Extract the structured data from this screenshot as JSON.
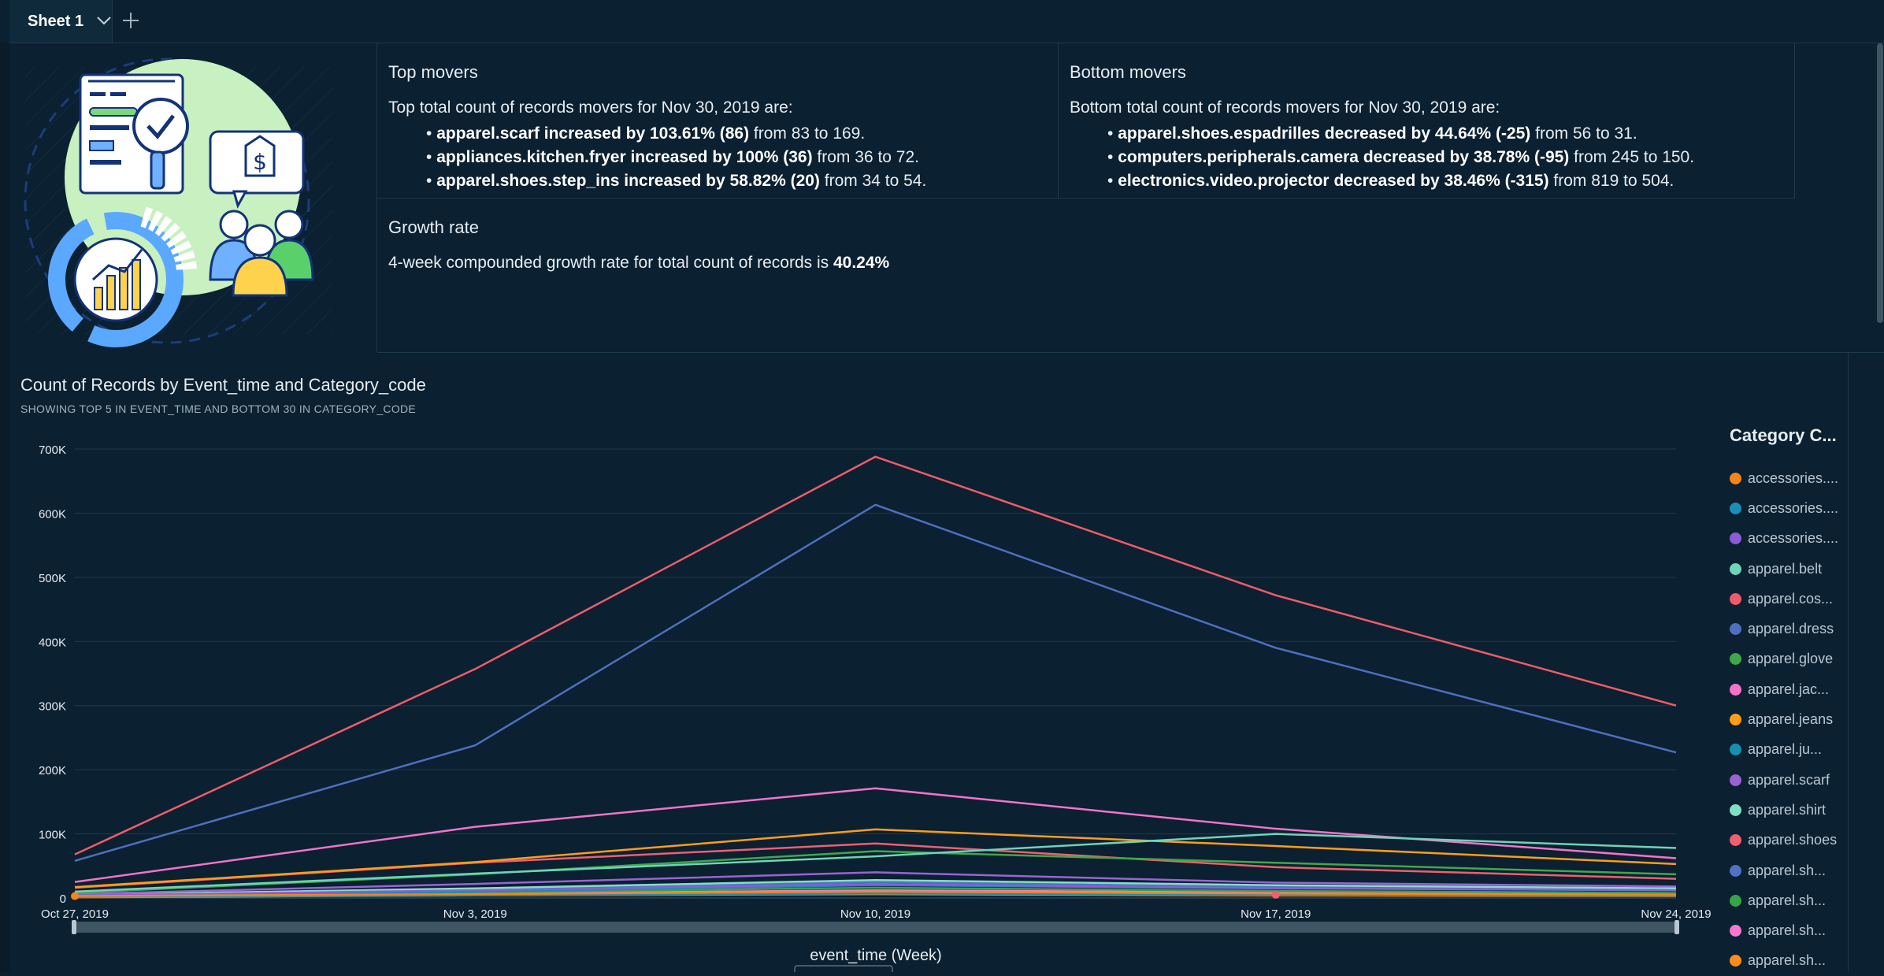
{
  "tabs": {
    "sheet_label": "Sheet 1"
  },
  "top_movers": {
    "title": "Top movers",
    "intro": "Top total count of records movers for Nov 30, 2019 are:",
    "items": [
      {
        "bold": "apparel.scarf increased by 103.61% (86)",
        "rest": " from 83 to 169."
      },
      {
        "bold": "appliances.kitchen.fryer increased by 100% (36)",
        "rest": " from 36 to 72."
      },
      {
        "bold": "apparel.shoes.step_ins increased by 58.82% (20)",
        "rest": " from 34 to 54."
      }
    ]
  },
  "bottom_movers": {
    "title": "Bottom movers",
    "intro": "Bottom total count of records movers for Nov 30, 2019 are:",
    "items": [
      {
        "bold": "apparel.shoes.espadrilles decreased by 44.64% (-25)",
        "rest": " from 56 to 31."
      },
      {
        "bold": "computers.peripherals.camera decreased by 38.78% (-95)",
        "rest": " from 245 to 150."
      },
      {
        "bold": "electronics.video.projector decreased by 38.46% (-315)",
        "rest": " from 819 to 504."
      }
    ]
  },
  "growth": {
    "title": "Growth rate",
    "text": "4-week compounded growth rate for total count of records is ",
    "value": "40.24%"
  },
  "chart_data": {
    "type": "line",
    "title": "Count of Records by Event_time and Category_code",
    "subtitle": "SHOWING TOP 5 IN EVENT_TIME AND BOTTOM 30 IN CATEGORY_CODE",
    "xlabel": "event_time (Week)",
    "ylabel": "",
    "x": [
      "Oct 27, 2019",
      "Nov 3, 2019",
      "Nov 10, 2019",
      "Nov 17, 2019",
      "Nov 24, 2019"
    ],
    "y_ticks": [
      "0",
      "100K",
      "200K",
      "300K",
      "400K",
      "500K",
      "600K",
      "700K"
    ],
    "ylim": [
      0,
      700000
    ],
    "grid": true,
    "legend_title": "Category C...",
    "legend_position": "right",
    "series": [
      {
        "name": "accessories....",
        "color": "#f58518",
        "values": [
          3000,
          6000,
          10000,
          7000,
          5000
        ]
      },
      {
        "name": "accessories....",
        "color": "#1a8fb5",
        "values": [
          2000,
          4000,
          7000,
          5000,
          4000
        ]
      },
      {
        "name": "accessories....",
        "color": "#8e5bd8",
        "values": [
          4000,
          12000,
          22000,
          15000,
          12000
        ]
      },
      {
        "name": "apparel.belt",
        "color": "#6fd3b8",
        "values": [
          10000,
          38000,
          65000,
          100000,
          78000
        ]
      },
      {
        "name": "apparel.cos...",
        "color": "#f05b6a",
        "values": [
          68000,
          357000,
          688000,
          472000,
          300000
        ]
      },
      {
        "name": "apparel.dress",
        "color": "#4f6fbf",
        "values": [
          58000,
          238000,
          613000,
          390000,
          227000
        ]
      },
      {
        "name": "apparel.glove",
        "color": "#3fa84a",
        "values": [
          8000,
          37000,
          73000,
          55000,
          37000
        ]
      },
      {
        "name": "apparel.jac...",
        "color": "#f472c9",
        "values": [
          25000,
          111000,
          171000,
          108000,
          62000
        ]
      },
      {
        "name": "apparel.jeans",
        "color": "#ff9d1a",
        "values": [
          17000,
          56000,
          107000,
          81000,
          53000
        ]
      },
      {
        "name": "apparel.ju...",
        "color": "#1590b0",
        "values": [
          3000,
          10000,
          20000,
          15000,
          12000
        ]
      },
      {
        "name": "apparel.scarf",
        "color": "#9a63d4",
        "values": [
          6000,
          22000,
          40000,
          24000,
          18000
        ]
      },
      {
        "name": "apparel.shirt",
        "color": "#7fe0c5",
        "values": [
          5000,
          15000,
          28000,
          20000,
          15000
        ]
      },
      {
        "name": "apparel.shoes",
        "color": "#ef5f6f",
        "values": [
          16000,
          55000,
          85000,
          48000,
          30000
        ]
      },
      {
        "name": "apparel.sh...",
        "color": "#4f72c4",
        "values": [
          4000,
          13000,
          25000,
          17000,
          14000
        ]
      },
      {
        "name": "apparel.sh...",
        "color": "#36a54a",
        "values": [
          3000,
          9000,
          16000,
          11000,
          8000
        ]
      },
      {
        "name": "apparel.sh...",
        "color": "#f777cf",
        "values": [
          2000,
          7000,
          12000,
          9000,
          7000
        ]
      },
      {
        "name": "apparel.sh...",
        "color": "#ff8c1a",
        "values": [
          1000,
          4000,
          6000,
          4000,
          3000
        ]
      }
    ]
  }
}
